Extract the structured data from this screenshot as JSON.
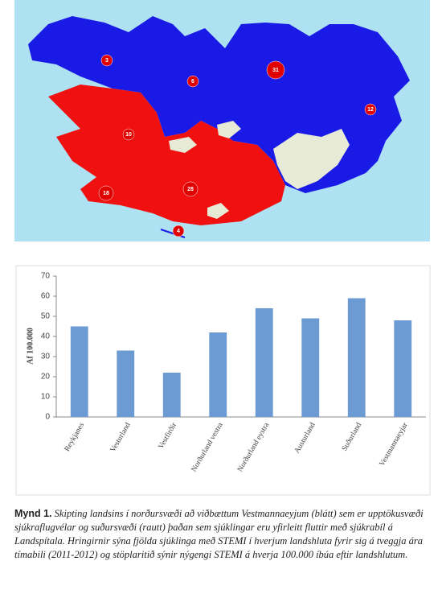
{
  "map": {
    "labels": [
      3,
      6,
      31,
      12,
      10,
      18,
      28,
      4
    ]
  },
  "chart_data": {
    "type": "bar",
    "y_label": "Af 100.000",
    "categories": [
      "Reykjanes",
      "Vesturland",
      "Vestfirðir",
      "Norðurland vestra",
      "Norðurland eystra",
      "Austurland",
      "Suðurland",
      "Vestmannaeyjar"
    ],
    "values": [
      45,
      33,
      22,
      42,
      54,
      49,
      59,
      48
    ],
    "color": "#6b9bd2",
    "ylim": [
      0,
      70
    ],
    "yticks": [
      0,
      10,
      20,
      30,
      40,
      50,
      60,
      70
    ],
    "grid": false
  },
  "caption": {
    "label": "Mynd 1.",
    "text": "Skipting landsins í norðursvæði að viðbættum Vestmannaeyjum (blátt) sem er upptökusvæði sjúkraflugvélar og suðursvæði (rautt) þaðan sem sjúklingar eru yfirleitt fluttir með sjúkrabíl á Landspítala. Hringirnir sýna fjölda sjúklinga með STEMI í hverjum landshluta fyrir sig á tveggja ára tímabili (2011-2012) og stöplaritið sýnir nýgengi STEMI á hverja 100.000 íbúa eftir landshlutum."
  }
}
